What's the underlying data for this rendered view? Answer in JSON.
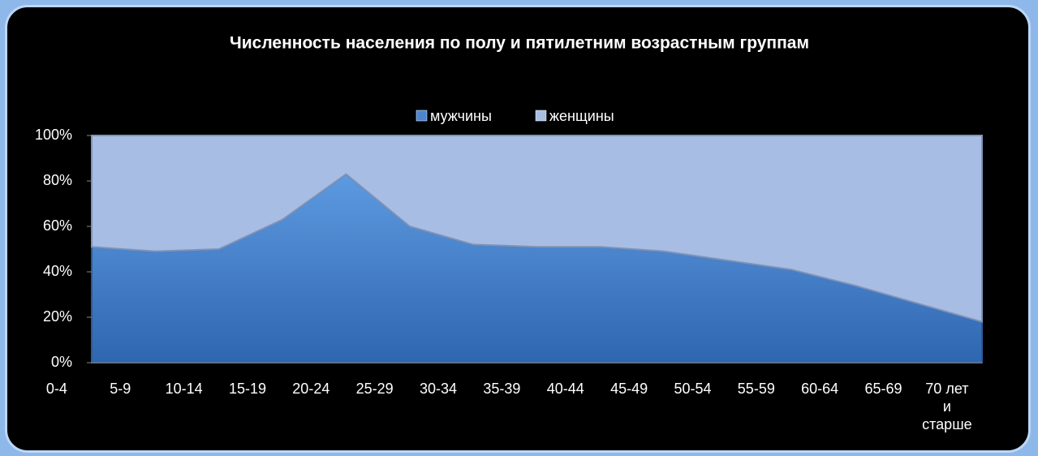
{
  "chart_data": {
    "type": "stacked_area_100",
    "title": "Численность населения по полу и пятилетним возрастным группам",
    "categories": [
      "0-4",
      "5-9",
      "10-14",
      "15-19",
      "20-24",
      "25-29",
      "30-34",
      "35-39",
      "40-44",
      "45-49",
      "50-54",
      "55-59",
      "60-64",
      "65-69",
      "70 лет и старше"
    ],
    "series": [
      {
        "name": "мужчины",
        "color": "#4a86d0",
        "values": [
          51,
          49,
          50,
          63,
          83,
          60,
          52,
          51,
          51,
          49,
          45,
          41,
          34,
          26,
          18
        ]
      },
      {
        "name": "женщины",
        "color": "#a8bde3",
        "values": [
          49,
          51,
          50,
          37,
          17,
          40,
          48,
          49,
          49,
          51,
          55,
          59,
          66,
          74,
          82
        ]
      }
    ],
    "ylim": [
      0,
      100
    ],
    "yticks": [
      {
        "value": 0,
        "label": "0%"
      },
      {
        "value": 20,
        "label": "20%"
      },
      {
        "value": 40,
        "label": "40%"
      },
      {
        "value": 60,
        "label": "60%"
      },
      {
        "value": 80,
        "label": "80%"
      },
      {
        "value": 100,
        "label": "100%"
      }
    ],
    "legend": "top"
  }
}
